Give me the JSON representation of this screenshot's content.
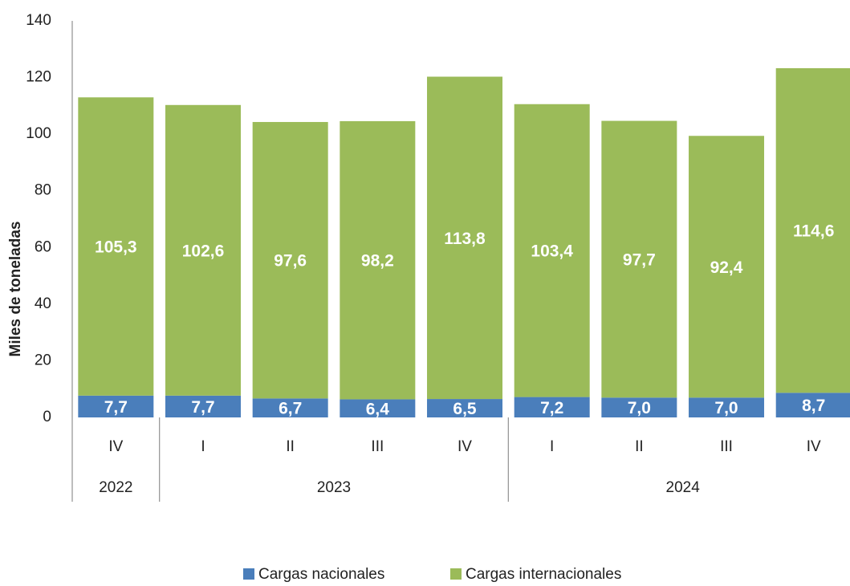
{
  "chart_data": {
    "type": "stacked_bar",
    "categories": [
      "IV",
      "I",
      "II",
      "III",
      "IV",
      "I",
      "II",
      "III",
      "IV"
    ],
    "groups": [
      {
        "label": "2022",
        "span": 1
      },
      {
        "label": "2023",
        "span": 4
      },
      {
        "label": "2024",
        "span": 4
      }
    ],
    "y_label": "Miles de toneladas",
    "series": [
      {
        "name": "Cargas nacionales",
        "color": "#4a7ebb",
        "values": [
          7.7,
          7.7,
          6.7,
          6.4,
          6.5,
          7.2,
          7.0,
          7.0,
          8.7
        ],
        "value_labels": [
          "7,7",
          "7,7",
          "6,7",
          "6,4",
          "6,5",
          "7,2",
          "7,0",
          "7,0",
          "8,7"
        ]
      },
      {
        "name": "Cargas internacionales",
        "color": "#9bbb59",
        "values": [
          105.3,
          102.6,
          97.6,
          98.2,
          113.8,
          103.4,
          97.7,
          92.4,
          114.6
        ],
        "value_labels": [
          "105,3",
          "102,6",
          "97,6",
          "98,2",
          "113,8",
          "103,4",
          "97,7",
          "92,4",
          "114,6"
        ]
      }
    ],
    "ylim": [
      0,
      140
    ],
    "yticks": [
      0,
      20,
      40,
      60,
      80,
      100,
      120,
      140
    ],
    "legend": "bottom"
  }
}
